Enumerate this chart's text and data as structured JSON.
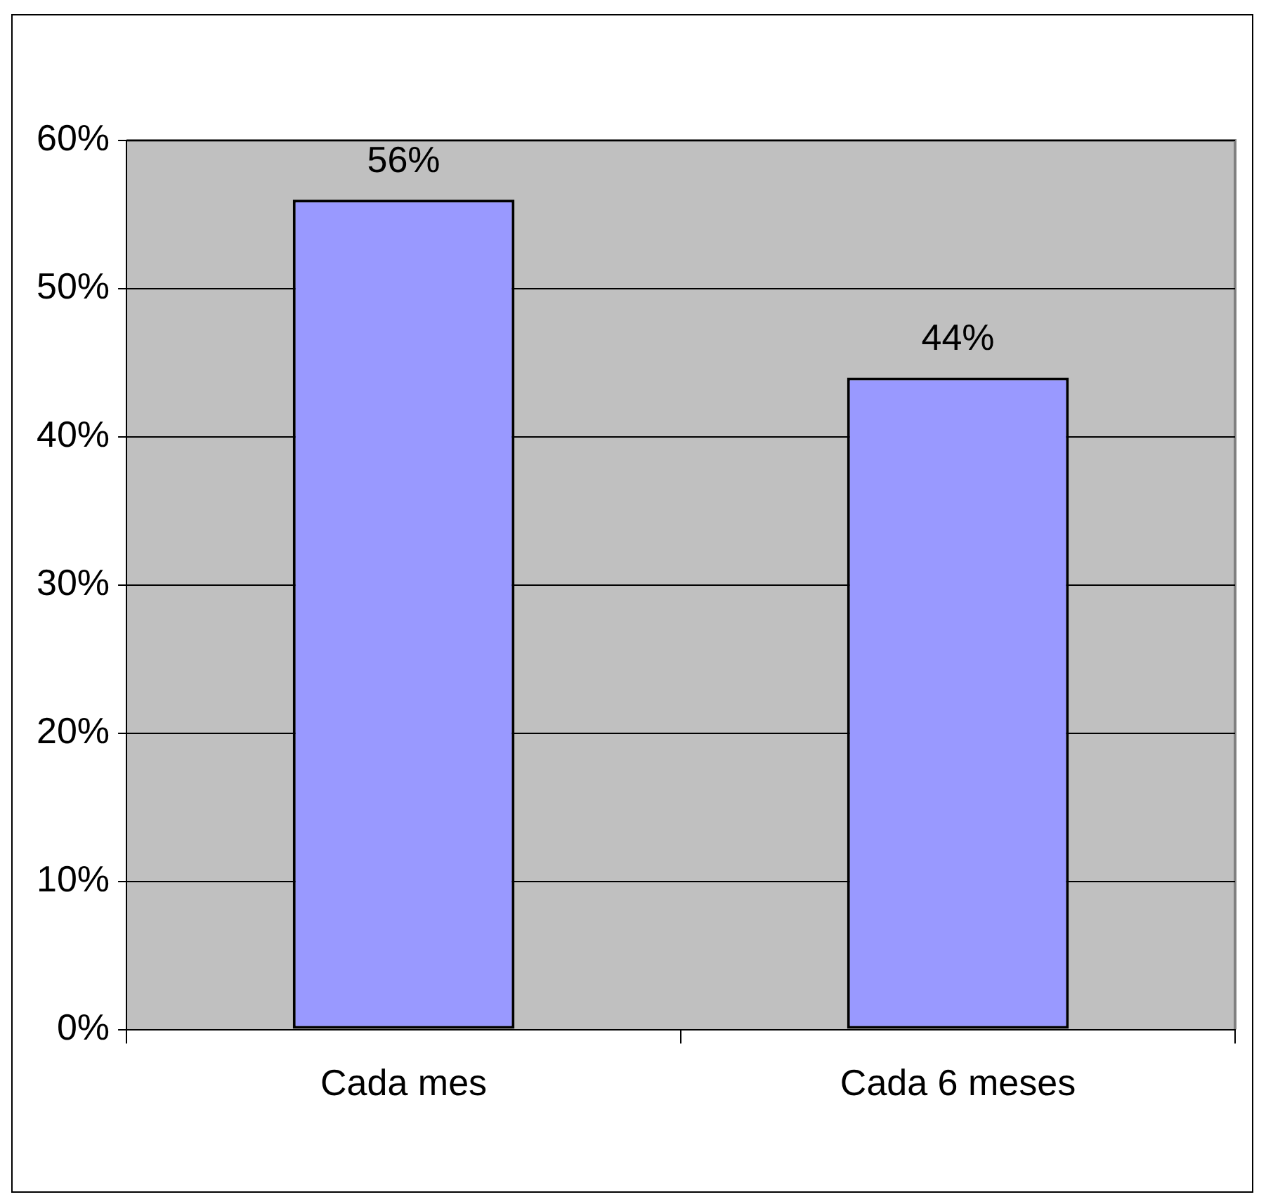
{
  "chart_data": {
    "type": "bar",
    "categories": [
      "Cada mes",
      "Cada 6 meses"
    ],
    "values": [
      56,
      44
    ],
    "value_labels": [
      "56%",
      "44%"
    ],
    "color": "#9999ff",
    "ylim": [
      0,
      60
    ],
    "yticks": [
      {
        "value": 0,
        "label": "0%"
      },
      {
        "value": 10,
        "label": "10%"
      },
      {
        "value": 20,
        "label": "20%"
      },
      {
        "value": 30,
        "label": "30%"
      },
      {
        "value": 40,
        "label": "40%"
      },
      {
        "value": 50,
        "label": "50%"
      },
      {
        "value": 60,
        "label": "60%"
      }
    ],
    "grid": "y",
    "legend": false
  }
}
